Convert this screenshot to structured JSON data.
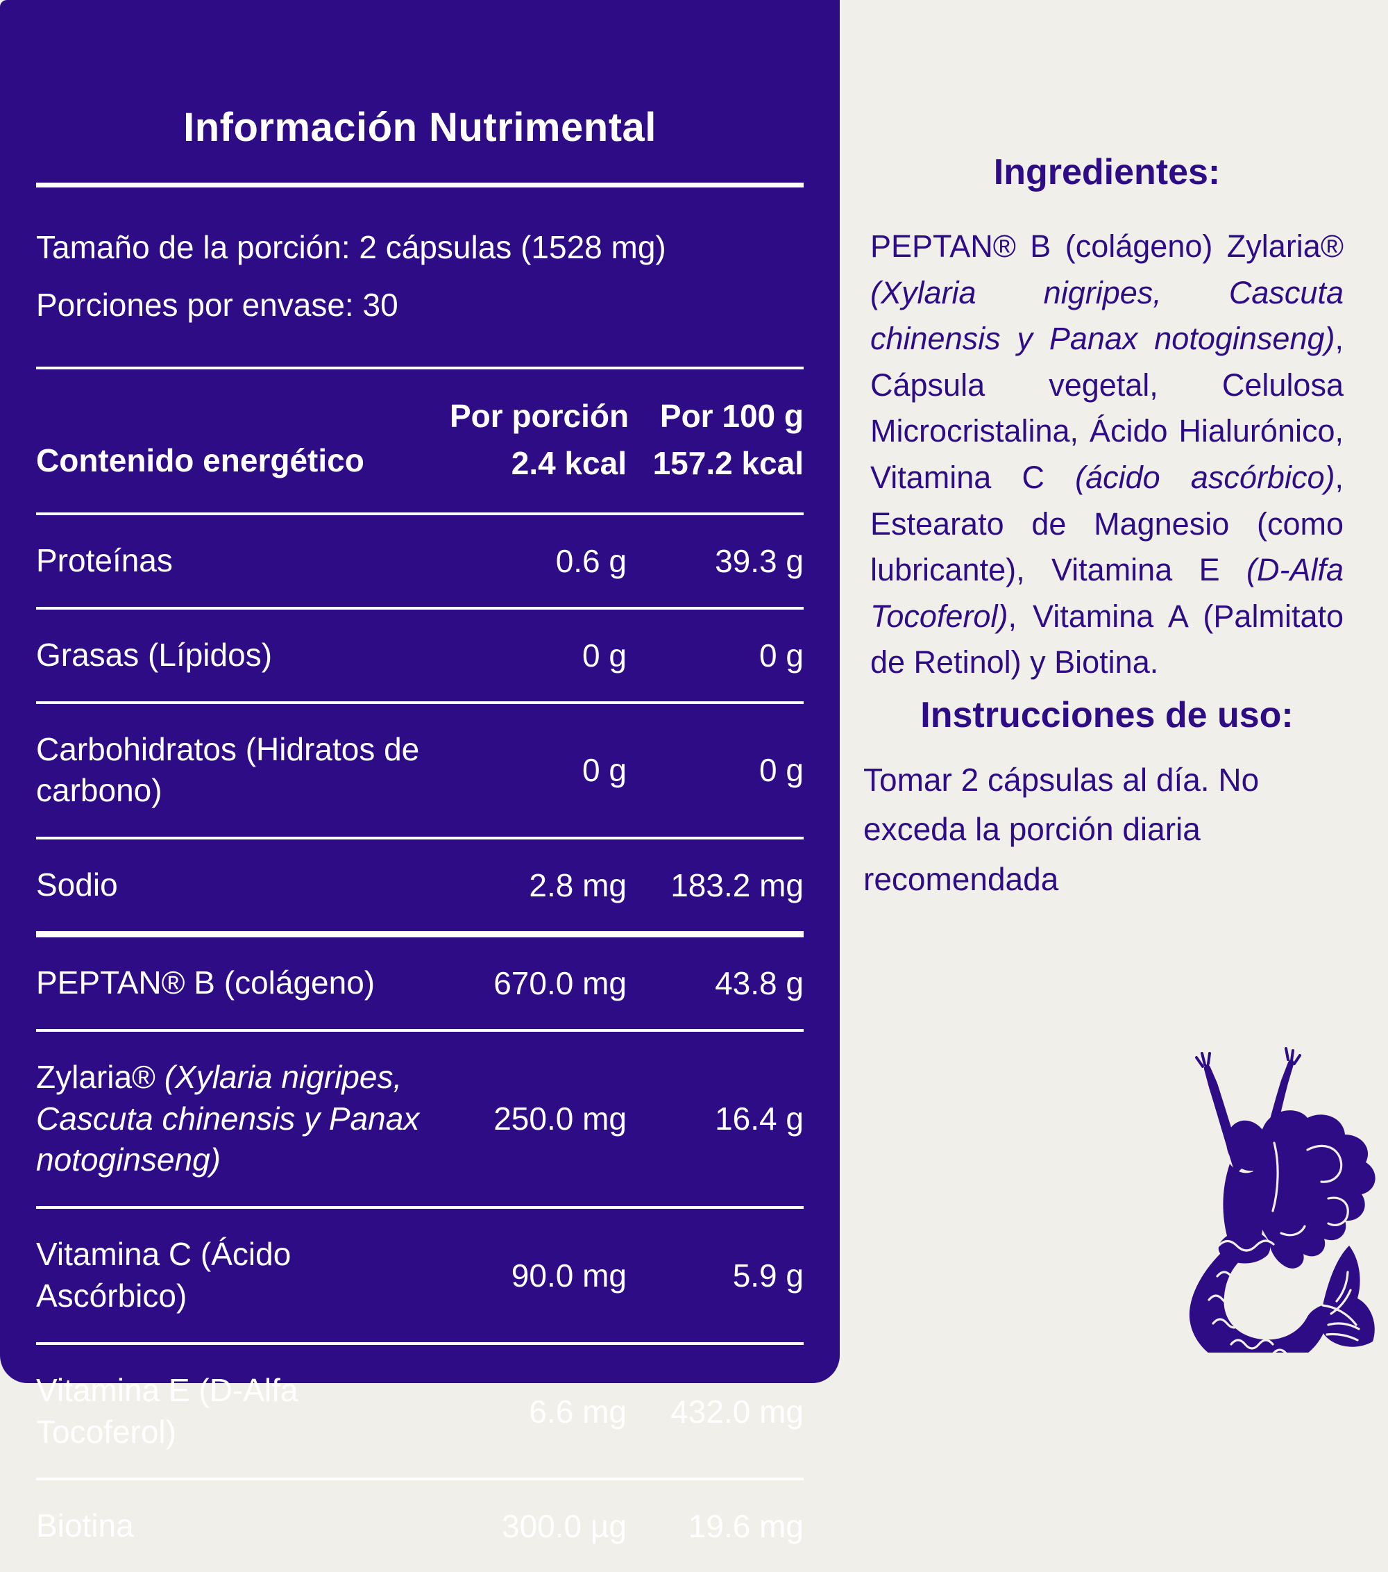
{
  "colors": {
    "panel_bg": "#2D0C86",
    "page_bg": "#F0EFEA",
    "panel_text": "#FFFFFF",
    "accent_text": "#2D0C86"
  },
  "panel": {
    "title": "Información Nutrimental",
    "serving_size": "Tamaño de la porción: 2 cápsulas (1528 mg)",
    "servings_per_container": "Porciones por envase: 30",
    "columns": {
      "per_serving": "Por porción",
      "per_100g": "Por 100 g"
    },
    "energy_row": {
      "label": "Contenido energético",
      "v1": "2.4 kcal",
      "v2": "157.2 kcal"
    },
    "rows": [
      {
        "label": "Proteínas",
        "v1": "0.6 g",
        "v2": "39.3 g"
      },
      {
        "label": "Grasas (Lípidos)",
        "v1": "0 g",
        "v2": "0 g"
      },
      {
        "label": "Carbohidratos (Hidratos de carbono)",
        "v1": "0 g",
        "v2": "0 g"
      },
      {
        "label": "Sodio",
        "v1": "2.8 mg",
        "v2": "183.2 mg"
      },
      {
        "label": "PEPTAN® B (colágeno)",
        "v1": "670.0 mg",
        "v2": "43.8 g"
      },
      {
        "label_segments": [
          {
            "t": "Zylaria® ",
            "i": false
          },
          {
            "t": "(Xylaria nigripes, Cascuta chinensis y Panax notoginseng)",
            "i": true
          }
        ],
        "v1": "250.0 mg",
        "v2": "16.4 g"
      },
      {
        "label": "Vitamina C (Ácido Ascórbico)",
        "v1": "90.0 mg",
        "v2": "5.9 g"
      },
      {
        "label": "Vitamina E (D-Alfa Tocoferol)",
        "v1": "6.6 mg",
        "v2": "432.0 mg"
      },
      {
        "label": "Biotina",
        "v1": "300.0 µg",
        "v2": "19.6 mg"
      }
    ]
  },
  "right": {
    "ingredients_title": "Ingredientes:",
    "ingredients_segments": [
      {
        "t": "PEPTAN® B (colágeno) Zylaria® ",
        "i": false
      },
      {
        "t": "(Xylaria nigripes, Cascuta chinensis y Panax notoginseng)",
        "i": true
      },
      {
        "t": ", Cápsula vegetal, Celulosa Microcristalina, Ácido Hialurónico, Vitamina C ",
        "i": false
      },
      {
        "t": "(ácido ascórbico)",
        "i": true
      },
      {
        "t": ", Estearato de Magnesio (como lubricante), Vitamina E ",
        "i": false
      },
      {
        "t": "(D-Alfa Tocoferol)",
        "i": true
      },
      {
        "t": ", Vitamina A (Palmitato de Retinol) y Biotina.",
        "i": false
      }
    ],
    "instructions_title": "Instrucciones de uso:",
    "instructions_text": "Tomar 2 cápsulas al día. No exceda la porción diaria recomendada"
  },
  "icons": {
    "mermaid": "mermaid-illustration"
  }
}
